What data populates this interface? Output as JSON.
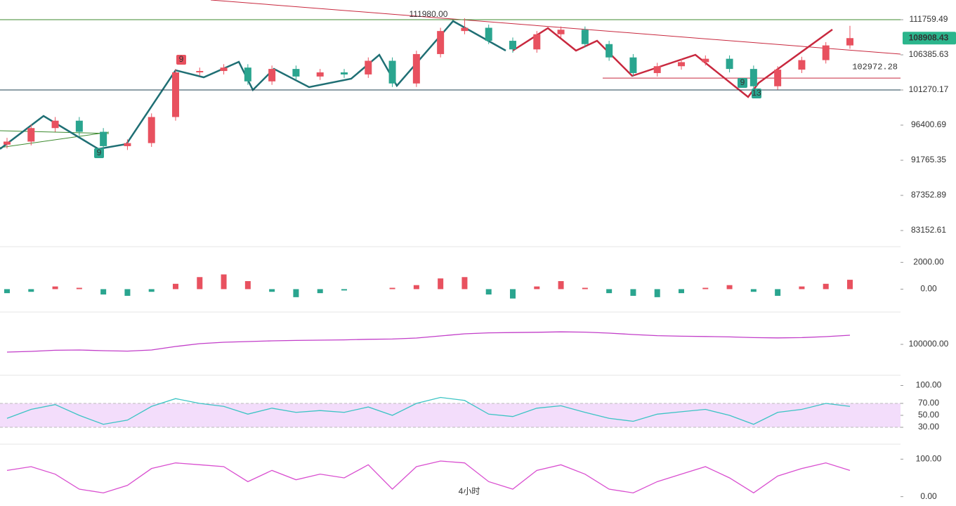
{
  "chart_data": [
    {
      "type": "candlestick",
      "log_scale": true,
      "up_color": "#e8515f",
      "down_color": "#2aa58f",
      "open": [
        93800,
        94200,
        96000,
        97000,
        95500,
        93600,
        94000,
        97500,
        103800,
        104000,
        104500,
        102500,
        104300,
        103200,
        103800,
        103500,
        105500,
        102200,
        106500,
        110000,
        110500,
        108500,
        107200,
        109500,
        110200,
        108000,
        106000,
        103700,
        104700,
        105300,
        105800,
        104300,
        101800,
        104200,
        105600,
        107800
      ],
      "high": [
        94700,
        96500,
        97500,
        97500,
        96000,
        94500,
        98000,
        104300,
        104500,
        105000,
        105000,
        104800,
        104800,
        104300,
        104300,
        106000,
        106000,
        107000,
        110500,
        111980,
        111000,
        109000,
        110000,
        110700,
        110700,
        108500,
        106500,
        105200,
        105800,
        106300,
        106300,
        104800,
        104700,
        106100,
        108300,
        110800
      ],
      "low": [
        93300,
        93700,
        95500,
        95000,
        93100,
        93100,
        93500,
        97000,
        103300,
        103500,
        102000,
        102000,
        102700,
        102700,
        103000,
        103000,
        101700,
        101700,
        106000,
        109500,
        108000,
        106700,
        106700,
        109000,
        107500,
        105500,
        103200,
        103200,
        104200,
        104800,
        103800,
        100900,
        101300,
        103700,
        105100,
        107300
      ],
      "close": [
        94200,
        96000,
        97000,
        95500,
        93600,
        94000,
        97500,
        103800,
        104000,
        104500,
        102500,
        104300,
        103200,
        103800,
        103500,
        105500,
        102200,
        106500,
        110000,
        110500,
        108500,
        107200,
        109500,
        110200,
        108000,
        106000,
        103700,
        104700,
        105300,
        105800,
        104300,
        101800,
        104200,
        105600,
        107800,
        108908.43
      ],
      "ylim": [
        81370,
        114890
      ],
      "yticks": [
        111759.49,
        106385.63,
        101270.17,
        96400.69,
        91765.35,
        87352.89,
        83152.61
      ],
      "hlines": [
        111759.49,
        101270.17
      ],
      "current_price": 108908.43,
      "price_line": 102972.28,
      "peak_label": {
        "value": 111980,
        "label": "111980.00"
      },
      "markers": [
        "9",
        "9",
        "9",
        "13"
      ]
    },
    {
      "type": "histogram",
      "ylim": [
        -1500,
        2700
      ],
      "yticks": [
        {
          "value": 2000,
          "label": "2000.00"
        },
        {
          "value": 0,
          "label": "0.00"
        }
      ],
      "values": [
        -300,
        -200,
        200,
        100,
        -400,
        -500,
        -200,
        400,
        900,
        1100,
        600,
        -200,
        -600,
        -300,
        -100,
        0,
        100,
        300,
        800,
        900,
        -400,
        -700,
        200,
        600,
        100,
        -300,
        -500,
        -600,
        -300,
        100,
        300,
        -200,
        -500,
        200,
        400,
        700
      ]
    },
    {
      "type": "line",
      "ylim": [
        80000,
        120000
      ],
      "color": "#c23ec9",
      "yticks": [
        {
          "value": 100000,
          "label": "100000.00"
        }
      ],
      "values": [
        94500,
        95000,
        95800,
        96000,
        95500,
        95200,
        96000,
        98500,
        100500,
        101500,
        102000,
        102500,
        102800,
        103000,
        103200,
        103600,
        103800,
        104500,
        106000,
        107500,
        108200,
        108400,
        108600,
        108900,
        108700,
        108000,
        107000,
        106200,
        105800,
        105600,
        105300,
        104800,
        104600,
        104800,
        105500,
        106500
      ]
    },
    {
      "type": "line",
      "ylim": [
        10,
        110
      ],
      "color": "#3cc4c4",
      "band": [
        30,
        70
      ],
      "band_color": "#f3ddfb",
      "yticks": [
        {
          "value": 100,
          "label": "100.00"
        },
        {
          "value": 70,
          "label": "70.00"
        },
        {
          "value": 50,
          "label": "50.00"
        },
        {
          "value": 30,
          "label": "30.00"
        }
      ],
      "values": [
        45,
        60,
        68,
        50,
        35,
        42,
        65,
        78,
        70,
        65,
        52,
        62,
        55,
        58,
        55,
        64,
        50,
        70,
        80,
        75,
        52,
        48,
        62,
        66,
        55,
        45,
        40,
        52,
        56,
        60,
        50,
        35,
        55,
        60,
        70,
        65
      ]
    },
    {
      "type": "line",
      "ylim": [
        -25,
        125
      ],
      "color": "#d94fd0",
      "yticks": [
        {
          "value": 100,
          "label": "100.00"
        },
        {
          "value": 0,
          "label": "0.00"
        }
      ],
      "values": [
        70,
        80,
        60,
        20,
        10,
        30,
        75,
        90,
        85,
        80,
        40,
        70,
        45,
        60,
        50,
        85,
        20,
        80,
        95,
        90,
        40,
        20,
        70,
        85,
        60,
        20,
        10,
        40,
        60,
        80,
        50,
        10,
        55,
        75,
        90,
        70
      ],
      "caption": "4小时"
    }
  ]
}
